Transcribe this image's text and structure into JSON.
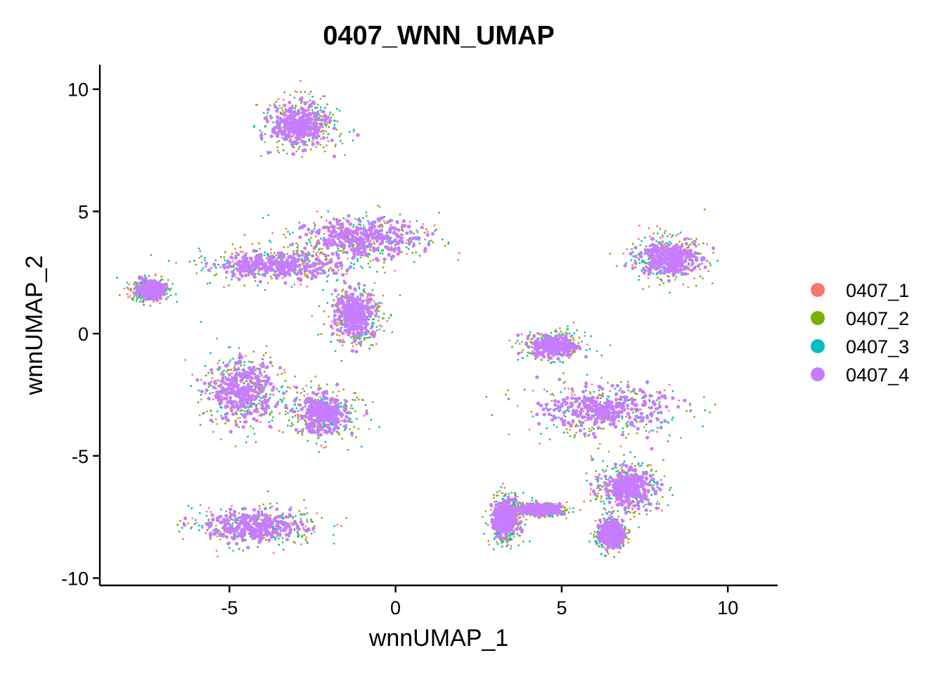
{
  "chart_data": {
    "type": "scatter",
    "title": "0407_WNN_UMAP",
    "xlabel": "wnnUMAP_1",
    "ylabel": "wnnUMAP_2",
    "xlim": [
      -8.9,
      11.5
    ],
    "ylim": [
      -10.3,
      11.0
    ],
    "x_ticks": [
      -5,
      0,
      5,
      10
    ],
    "x_tick_labels": [
      "-5",
      "0",
      "5",
      "10"
    ],
    "y_ticks": [
      -10,
      -5,
      0,
      5,
      10
    ],
    "y_tick_labels": [
      "-10",
      "-5",
      "0",
      "5",
      "10"
    ],
    "grid": false,
    "legend_position": "right",
    "series": [
      {
        "name": "0407_1",
        "color": "#F8766D"
      },
      {
        "name": "0407_2",
        "color": "#7CAE00"
      },
      {
        "name": "0407_3",
        "color": "#00BFC4"
      },
      {
        "name": "0407_4",
        "color": "#C77CFF"
      }
    ],
    "clusters": [
      {
        "center": [
          -2.9,
          8.5
        ],
        "spread": [
          1.0,
          1.0
        ]
      },
      {
        "center": [
          -1.0,
          3.9
        ],
        "spread": [
          2.0,
          0.9
        ]
      },
      {
        "center": [
          -3.5,
          2.8
        ],
        "spread": [
          2.2,
          0.6
        ]
      },
      {
        "center": [
          -7.4,
          1.8
        ],
        "spread": [
          0.5,
          0.4
        ]
      },
      {
        "center": [
          -1.2,
          0.8
        ],
        "spread": [
          0.7,
          1.1
        ]
      },
      {
        "center": [
          -4.6,
          -2.4
        ],
        "spread": [
          1.1,
          1.4
        ]
      },
      {
        "center": [
          -2.2,
          -3.3
        ],
        "spread": [
          0.9,
          0.9
        ]
      },
      {
        "center": [
          -4.2,
          -7.9
        ],
        "spread": [
          1.7,
          0.7
        ]
      },
      {
        "center": [
          8.2,
          3.1
        ],
        "spread": [
          1.0,
          0.8
        ]
      },
      {
        "center": [
          6.3,
          -3.1
        ],
        "spread": [
          2.1,
          1.0
        ]
      },
      {
        "center": [
          7.0,
          -6.3
        ],
        "spread": [
          0.9,
          0.9
        ]
      },
      {
        "center": [
          6.5,
          -8.2
        ],
        "spread": [
          0.4,
          0.6
        ]
      },
      {
        "center": [
          4.3,
          -7.2
        ],
        "spread": [
          0.8,
          0.25
        ]
      },
      {
        "center": [
          3.3,
          -7.6
        ],
        "spread": [
          0.4,
          0.9
        ]
      },
      {
        "center": [
          4.8,
          -0.5
        ],
        "spread": [
          0.8,
          0.5
        ]
      }
    ]
  }
}
